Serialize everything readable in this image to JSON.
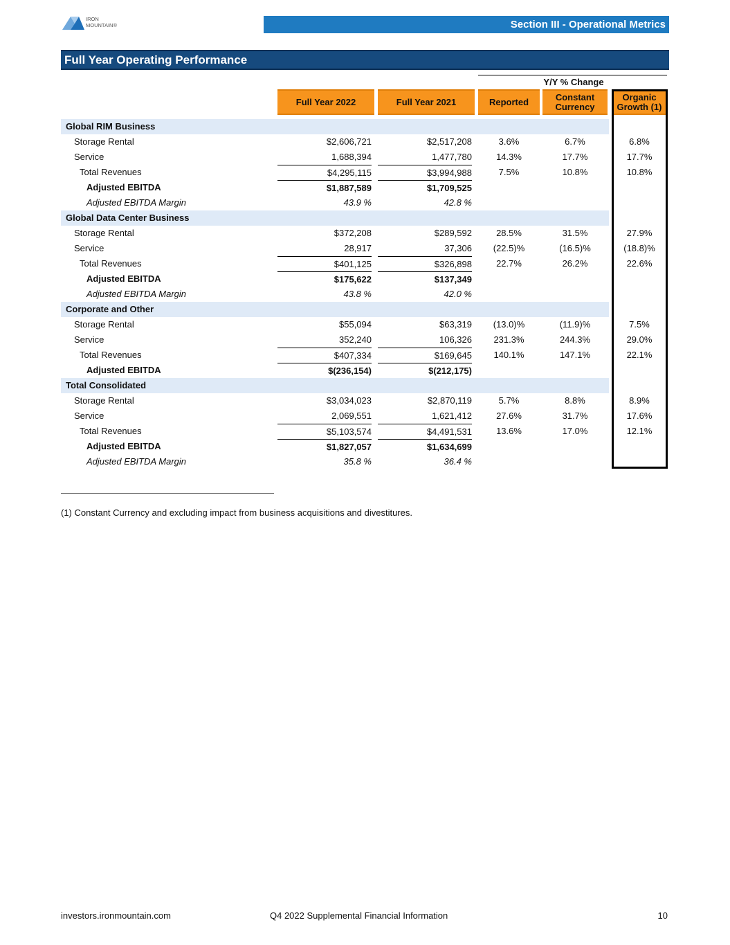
{
  "header": {
    "logo_top": "IRON",
    "logo_bottom": "MOUNTAIN®",
    "section": "Section III - Operational Metrics"
  },
  "title": "Full Year Operating Performance",
  "table": {
    "group_header": "Y/Y % Change",
    "columns": [
      "Full Year 2022",
      "Full Year 2021",
      "Reported",
      "Constant Currency",
      "Organic Growth (1)"
    ],
    "sections": [
      {
        "name": "Global RIM Business",
        "rows": [
          {
            "kind": "line",
            "label": "Storage Rental",
            "cells": [
              "$2,606,721",
              "$2,517,208",
              "3.6%",
              "6.7%",
              "6.8%"
            ]
          },
          {
            "kind": "line",
            "label": "Service",
            "cells": [
              "1,688,394",
              "1,477,780",
              "14.3%",
              "17.7%",
              "17.7%"
            ]
          },
          {
            "kind": "total",
            "label": "Total Revenues",
            "cells": [
              "$4,295,115",
              "$3,994,988",
              "7.5%",
              "10.8%",
              "10.8%"
            ]
          },
          {
            "kind": "ebitda",
            "label": "Adjusted EBITDA",
            "cells": [
              "$1,887,589",
              "$1,709,525"
            ]
          },
          {
            "kind": "margin",
            "label": "Adjusted EBITDA Margin",
            "cells": [
              "43.9 %",
              "42.8 %"
            ]
          }
        ]
      },
      {
        "name": "Global Data Center Business",
        "rows": [
          {
            "kind": "line",
            "label": "Storage Rental",
            "cells": [
              "$372,208",
              "$289,592",
              "28.5%",
              "31.5%",
              "27.9%"
            ]
          },
          {
            "kind": "line",
            "label": "Service",
            "cells": [
              "28,917",
              "37,306",
              "(22.5)%",
              "(16.5)%",
              "(18.8)%"
            ]
          },
          {
            "kind": "total",
            "label": "Total Revenues",
            "cells": [
              "$401,125",
              "$326,898",
              "22.7%",
              "26.2%",
              "22.6%"
            ]
          },
          {
            "kind": "ebitda",
            "label": "Adjusted EBITDA",
            "cells": [
              "$175,622",
              "$137,349"
            ]
          },
          {
            "kind": "margin",
            "label": "Adjusted EBITDA Margin",
            "cells": [
              "43.8 %",
              "42.0 %"
            ]
          }
        ]
      },
      {
        "name": "Corporate and Other",
        "rows": [
          {
            "kind": "line",
            "label": "Storage Rental",
            "cells": [
              "$55,094",
              "$63,319",
              "(13.0)%",
              "(11.9)%",
              "7.5%"
            ]
          },
          {
            "kind": "line",
            "label": "Service",
            "cells": [
              "352,240",
              "106,326",
              "231.3%",
              "244.3%",
              "29.0%"
            ]
          },
          {
            "kind": "total",
            "label": "Total Revenues",
            "cells": [
              "$407,334",
              "$169,645",
              "140.1%",
              "147.1%",
              "22.1%"
            ]
          },
          {
            "kind": "ebitda",
            "label": "Adjusted EBITDA",
            "cells": [
              "$(236,154)",
              "$(212,175)"
            ]
          }
        ]
      },
      {
        "name": "Total Consolidated",
        "rows": [
          {
            "kind": "line",
            "label": "Storage Rental",
            "cells": [
              "$3,034,023",
              "$2,870,119",
              "5.7%",
              "8.8%",
              "8.9%"
            ]
          },
          {
            "kind": "line",
            "label": "Service",
            "cells": [
              "2,069,551",
              "1,621,412",
              "27.6%",
              "31.7%",
              "17.6%"
            ]
          },
          {
            "kind": "total",
            "label": "Total Revenues",
            "cells": [
              "$5,103,574",
              "$4,491,531",
              "13.6%",
              "17.0%",
              "12.1%"
            ]
          },
          {
            "kind": "ebitda",
            "label": "Adjusted EBITDA",
            "cells": [
              "$1,827,057",
              "$1,634,699"
            ]
          },
          {
            "kind": "margin",
            "label": "Adjusted EBITDA Margin",
            "cells": [
              "35.8 %",
              "36.4 %"
            ]
          }
        ]
      }
    ]
  },
  "footnote": "(1) Constant Currency and excluding impact from business acquisitions and divestitures.",
  "footer": {
    "left": "investors.ironmountain.com",
    "center": "Q4 2022 Supplemental Financial Information",
    "page": "10"
  }
}
